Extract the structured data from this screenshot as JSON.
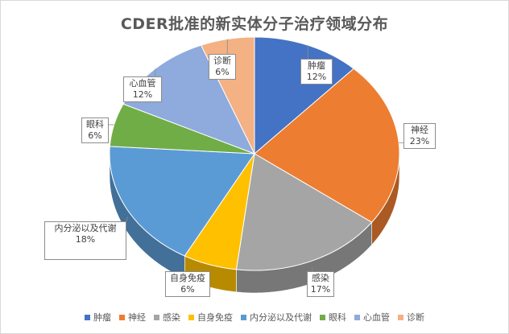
{
  "chart_data": {
    "type": "pie",
    "title": "CDER批准的新实体分子治疗领域分布",
    "categories": [
      "肿瘤",
      "神经",
      "感染",
      "自身免疫",
      "内分泌以及代谢",
      "眼科",
      "心血管",
      "诊断"
    ],
    "values": [
      12,
      23,
      17,
      6,
      18,
      6,
      12,
      6
    ],
    "data_labels": [
      "12%",
      "23%",
      "17%",
      "6%",
      "18%",
      "6%",
      "12%",
      "6%"
    ],
    "colors": [
      "#4472C4",
      "#ED7D31",
      "#A5A5A5",
      "#FFC000",
      "#5B9BD5",
      "#70AD47",
      "#8FAADC",
      "#F4B183"
    ],
    "style": "3d",
    "legend_position": "bottom"
  }
}
